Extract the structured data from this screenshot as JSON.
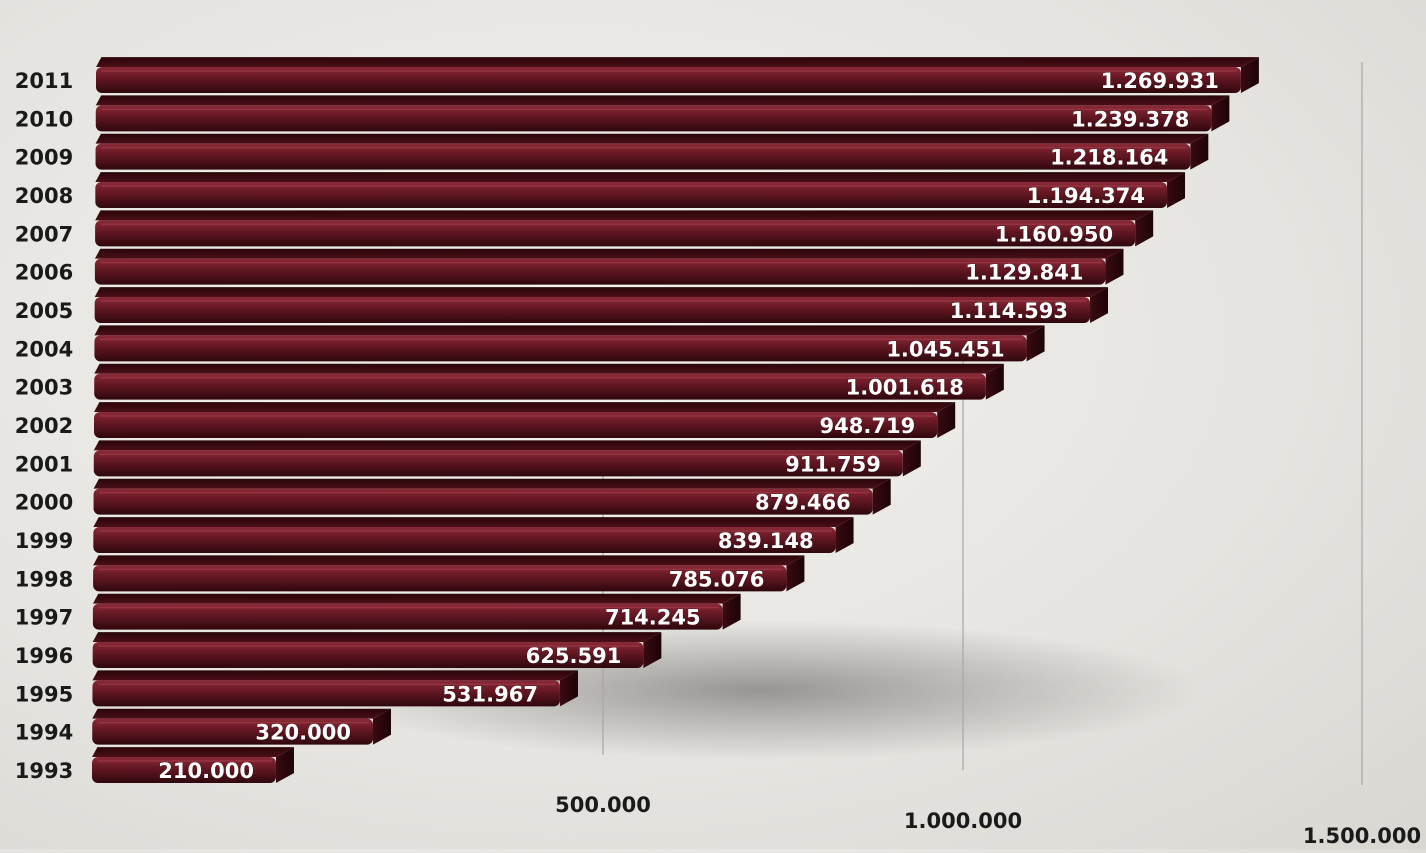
{
  "chart_data": {
    "type": "bar",
    "orientation": "horizontal",
    "style": "3d-perspective",
    "title": "",
    "xlabel": "",
    "ylabel": "",
    "xlim": [
      0,
      1500000
    ],
    "grid": true,
    "legend": "none",
    "bar_color": "#6b1a26",
    "categories": [
      "1993",
      "1994",
      "1995",
      "1996",
      "1997",
      "1998",
      "1999",
      "2000",
      "2001",
      "2002",
      "2003",
      "2004",
      "2005",
      "2006",
      "2007",
      "2008",
      "2009",
      "2010",
      "2011"
    ],
    "values": [
      210000,
      320000,
      531967,
      625591,
      714245,
      785076,
      839148,
      879466,
      911759,
      948719,
      1001618,
      1045451,
      1114593,
      1129841,
      1160950,
      1194374,
      1218164,
      1239378,
      1269931
    ],
    "data_labels": [
      "210.000",
      "320.000",
      "531.967",
      "625.591",
      "714.245",
      "785.076",
      "839.148",
      "879.466",
      "911.759",
      "948.719",
      "1.001.618",
      "1.045.451",
      "1.114.593",
      "1.129.841",
      "1.160.950",
      "1.194.374",
      "1.218.164",
      "1.239.378",
      "1.269.931"
    ],
    "x_ticks": [
      {
        "value": 500000,
        "label": "500.000"
      },
      {
        "value": 1000000,
        "label": "1.000.000"
      },
      {
        "value": 1500000,
        "label": "1.500.000"
      }
    ]
  }
}
